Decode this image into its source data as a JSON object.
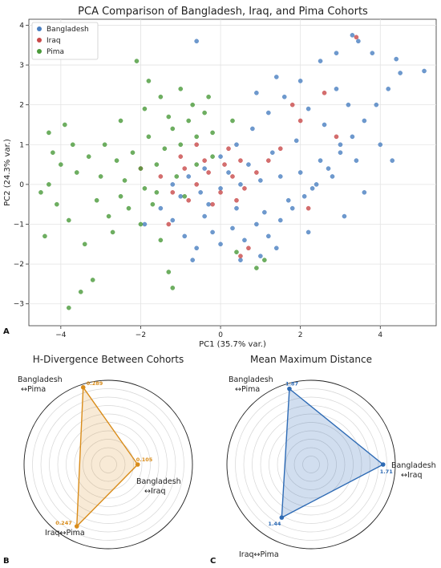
{
  "chart_data": [
    {
      "type": "scatter",
      "title": "PCA Comparison of Bangladesh, Iraq, and Pima Cohorts",
      "xlabel": "PC1 (35.7% var.)",
      "ylabel": "PC2 (24.3% var.)",
      "xlim": [
        -4.8,
        5.4
      ],
      "ylim": [
        -3.55,
        4.15
      ],
      "xticks": [
        -4,
        -2,
        0,
        2,
        4
      ],
      "yticks": [
        -3,
        -2,
        -1,
        0,
        1,
        2,
        3,
        4
      ],
      "grid": true,
      "legend_position": "top-left",
      "panel_label": "A",
      "series": [
        {
          "name": "Bangladesh",
          "color": "#4a7fc1",
          "points": [
            [
              -1.9,
              -1.0
            ],
            [
              -1.5,
              -0.6
            ],
            [
              -1.2,
              -0.9
            ],
            [
              -0.9,
              -1.3
            ],
            [
              -0.6,
              -1.6
            ],
            [
              -0.4,
              -0.8
            ],
            [
              -0.2,
              -1.2
            ],
            [
              0.0,
              -1.5
            ],
            [
              0.3,
              -1.1
            ],
            [
              0.6,
              -1.4
            ],
            [
              0.9,
              -1.0
            ],
            [
              1.2,
              -1.3
            ],
            [
              1.5,
              -0.9
            ],
            [
              1.8,
              -0.6
            ],
            [
              2.1,
              -0.3
            ],
            [
              2.4,
              0.0
            ],
            [
              2.7,
              0.4
            ],
            [
              3.0,
              0.8
            ],
            [
              3.3,
              1.2
            ],
            [
              3.6,
              1.6
            ],
            [
              3.9,
              2.0
            ],
            [
              4.2,
              2.4
            ],
            [
              4.5,
              2.8
            ],
            [
              5.1,
              2.85
            ],
            [
              4.4,
              3.15
            ],
            [
              3.3,
              3.75
            ],
            [
              3.45,
              3.6
            ],
            [
              2.9,
              3.3
            ],
            [
              2.5,
              3.1
            ],
            [
              2.0,
              2.6
            ],
            [
              1.6,
              2.2
            ],
            [
              1.2,
              1.8
            ],
            [
              0.8,
              1.4
            ],
            [
              0.4,
              1.0
            ],
            [
              0.0,
              0.7
            ],
            [
              -0.4,
              0.4
            ],
            [
              -0.8,
              0.2
            ],
            [
              -1.2,
              0.0
            ],
            [
              -1.0,
              -0.3
            ],
            [
              -0.5,
              -0.2
            ],
            [
              0.0,
              -0.1
            ],
            [
              0.5,
              0.0
            ],
            [
              1.0,
              0.1
            ],
            [
              1.5,
              0.2
            ],
            [
              2.0,
              0.3
            ],
            [
              2.5,
              0.6
            ],
            [
              3.0,
              1.0
            ],
            [
              0.2,
              0.3
            ],
            [
              0.7,
              0.5
            ],
            [
              1.3,
              0.8
            ],
            [
              1.9,
              1.1
            ],
            [
              2.6,
              1.5
            ],
            [
              3.2,
              2.0
            ],
            [
              -0.3,
              -0.5
            ],
            [
              0.4,
              -0.6
            ],
            [
              1.1,
              -0.7
            ],
            [
              1.7,
              -0.4
            ],
            [
              2.3,
              -0.1
            ],
            [
              2.8,
              0.2
            ],
            [
              3.4,
              0.6
            ],
            [
              -0.6,
              3.6
            ],
            [
              3.8,
              3.3
            ],
            [
              4.0,
              1.0
            ],
            [
              4.3,
              0.6
            ],
            [
              3.6,
              -0.2
            ],
            [
              1.0,
              -1.8
            ],
            [
              0.5,
              -1.9
            ],
            [
              -0.7,
              -1.9
            ],
            [
              1.4,
              -1.6
            ],
            [
              2.2,
              -1.2
            ],
            [
              3.1,
              -0.8
            ],
            [
              0.9,
              2.3
            ],
            [
              1.4,
              2.7
            ],
            [
              2.2,
              1.9
            ],
            [
              2.9,
              2.4
            ]
          ]
        },
        {
          "name": "Iraq",
          "color": "#c94a4a",
          "points": [
            [
              -1.5,
              0.2
            ],
            [
              -1.2,
              -0.2
            ],
            [
              -0.9,
              0.4
            ],
            [
              -0.6,
              0.0
            ],
            [
              -0.3,
              0.3
            ],
            [
              0.0,
              -0.2
            ],
            [
              0.3,
              0.2
            ],
            [
              0.6,
              -0.1
            ],
            [
              0.9,
              0.3
            ],
            [
              -0.8,
              -0.4
            ],
            [
              -0.4,
              0.6
            ],
            [
              0.1,
              0.5
            ],
            [
              0.5,
              0.6
            ],
            [
              -1.0,
              0.7
            ],
            [
              -0.2,
              -0.5
            ],
            [
              0.4,
              -0.4
            ],
            [
              1.2,
              0.6
            ],
            [
              1.5,
              0.9
            ],
            [
              2.0,
              1.6
            ],
            [
              2.6,
              2.3
            ],
            [
              3.4,
              3.7
            ],
            [
              2.2,
              -0.6
            ],
            [
              1.8,
              2.0
            ],
            [
              -1.3,
              -1.0
            ],
            [
              0.7,
              -1.6
            ],
            [
              0.5,
              -1.8
            ],
            [
              -2.0,
              0.4
            ],
            [
              2.9,
              1.2
            ],
            [
              0.2,
              0.9
            ],
            [
              -0.6,
              1.0
            ]
          ]
        },
        {
          "name": "Pima",
          "color": "#4a9a3a",
          "points": [
            [
              -4.2,
              0.8
            ],
            [
              -3.9,
              1.5
            ],
            [
              -4.0,
              0.5
            ],
            [
              -4.3,
              0.0
            ],
            [
              -4.1,
              -0.5
            ],
            [
              -3.8,
              -0.9
            ],
            [
              -4.4,
              -1.3
            ],
            [
              -3.8,
              -3.1
            ],
            [
              -3.5,
              -2.7
            ],
            [
              -3.2,
              -2.4
            ],
            [
              -3.6,
              0.3
            ],
            [
              -3.3,
              0.7
            ],
            [
              -3.0,
              0.2
            ],
            [
              -3.1,
              -0.4
            ],
            [
              -2.8,
              -0.8
            ],
            [
              -2.9,
              1.0
            ],
            [
              -2.6,
              0.6
            ],
            [
              -2.4,
              0.1
            ],
            [
              -2.5,
              -0.3
            ],
            [
              -2.2,
              0.8
            ],
            [
              -2.0,
              0.4
            ],
            [
              -1.8,
              1.2
            ],
            [
              -1.6,
              0.5
            ],
            [
              -1.4,
              0.9
            ],
            [
              -1.2,
              1.4
            ],
            [
              -1.0,
              1.0
            ],
            [
              -0.8,
              1.6
            ],
            [
              -0.6,
              1.2
            ],
            [
              -0.4,
              1.8
            ],
            [
              -0.2,
              1.3
            ],
            [
              -2.1,
              3.1
            ],
            [
              -1.8,
              2.6
            ],
            [
              -1.5,
              2.2
            ],
            [
              -1.0,
              2.4
            ],
            [
              -0.7,
              2.0
            ],
            [
              -0.3,
              2.2
            ],
            [
              -2.3,
              -0.6
            ],
            [
              -2.0,
              -1.0
            ],
            [
              -1.7,
              -0.5
            ],
            [
              -1.5,
              -1.4
            ],
            [
              -1.3,
              -2.2
            ],
            [
              -1.2,
              -2.6
            ],
            [
              -1.6,
              -0.2
            ],
            [
              -1.9,
              -0.1
            ],
            [
              -2.7,
              -1.2
            ],
            [
              -3.4,
              -1.5
            ],
            [
              -1.1,
              0.2
            ],
            [
              -0.9,
              -0.3
            ],
            [
              -0.6,
              0.5
            ],
            [
              -0.2,
              0.7
            ],
            [
              0.3,
              1.6
            ],
            [
              1.1,
              -1.9
            ],
            [
              0.9,
              -2.1
            ],
            [
              0.4,
              -1.7
            ],
            [
              -4.3,
              1.3
            ],
            [
              -4.5,
              -0.2
            ],
            [
              -3.7,
              1.0
            ],
            [
              -2.5,
              1.6
            ],
            [
              -1.9,
              1.9
            ],
            [
              -1.3,
              1.7
            ]
          ]
        }
      ]
    },
    {
      "type": "radar",
      "title": "H-Divergence Between Cohorts",
      "panel_label": "B",
      "color": "#d98c1a",
      "r_max": 0.3,
      "rings": 10,
      "axes": [
        {
          "label_top": "Bangladesh",
          "label_bottom": "↔Pima",
          "value": 0.289,
          "value_label": "0.289"
        },
        {
          "label_top": "Bangladesh",
          "label_bottom": "↔Iraq",
          "value": 0.105,
          "value_label": "0.105"
        },
        {
          "label_top": "Iraq↔Pima",
          "label_bottom": "",
          "value": 0.247,
          "value_label": "0.247"
        }
      ]
    },
    {
      "type": "radar",
      "title": "Mean Maximum Distance",
      "panel_label": "C",
      "color": "#2e6bb5",
      "r_max": 2.0,
      "rings": 10,
      "axes": [
        {
          "label_top": "Bangladesh",
          "label_bottom": "↔Pima",
          "value": 1.87,
          "value_label": "1.87"
        },
        {
          "label_top": "Bangladesh",
          "label_bottom": "↔Iraq",
          "value": 1.71,
          "value_label": "1.71"
        },
        {
          "label_top": "Iraq↔Pima",
          "label_bottom": "",
          "value": 1.44,
          "value_label": "1.44"
        }
      ]
    }
  ]
}
